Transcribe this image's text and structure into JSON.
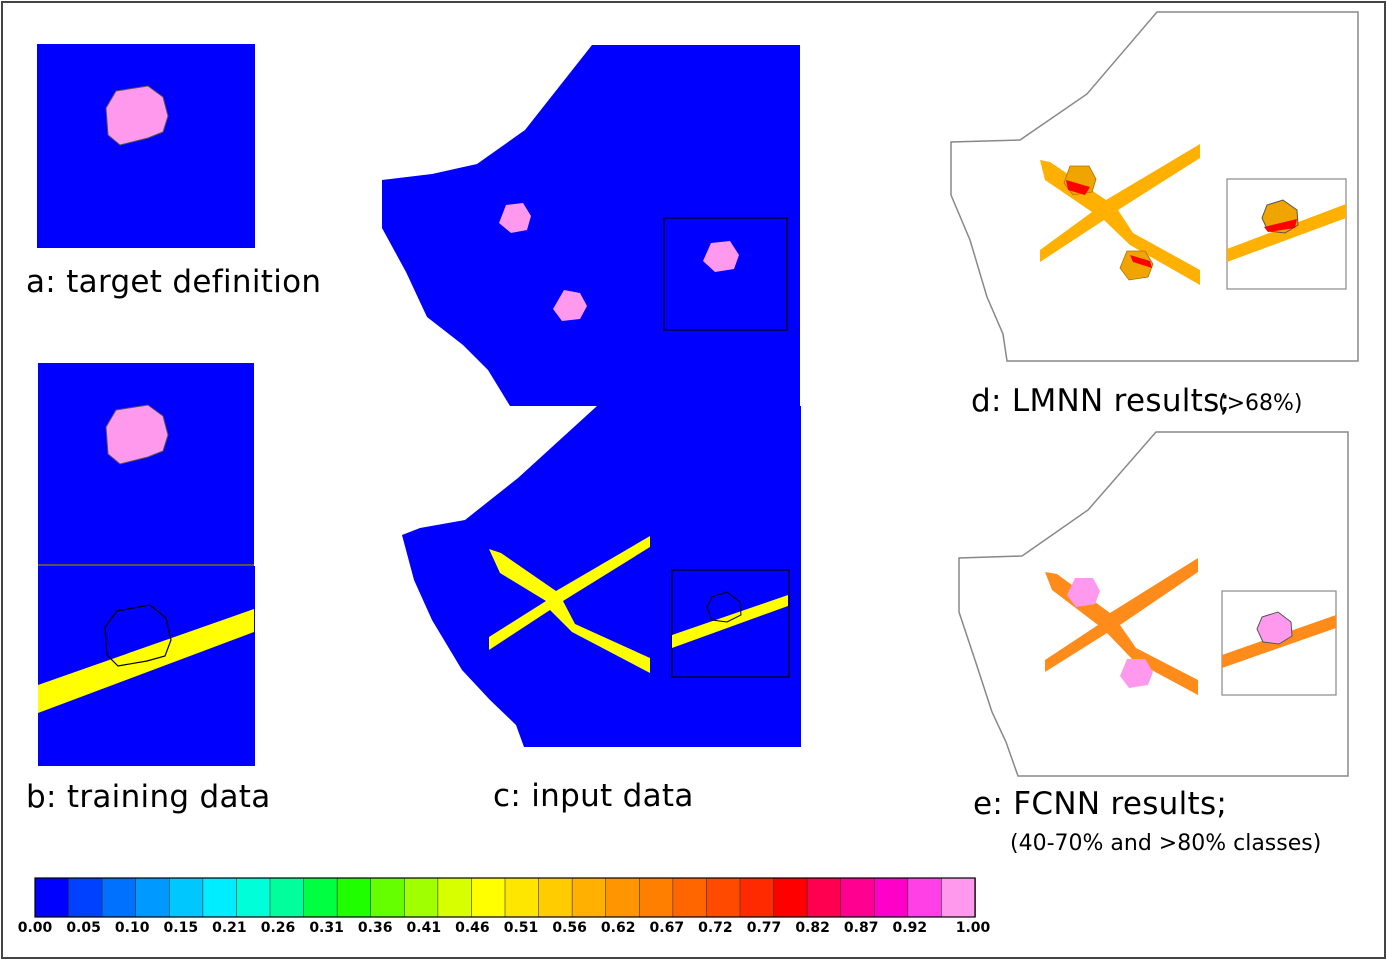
{
  "panels": {
    "a": {
      "label": "a: target definition"
    },
    "b": {
      "label": "b: training data"
    },
    "c": {
      "label": "c: input data"
    },
    "d": {
      "label": "d: LMNN results;",
      "note": "(>68%)"
    },
    "e": {
      "label": "e: FCNN results;",
      "note": "(40-70% and >80% classes)"
    }
  },
  "colors": {
    "background_field": "#0000ff",
    "target": "#ff99ee",
    "input_feature": "#ffff00",
    "lmnn_feature": "#ffb000",
    "lmnn_overlap": "#ff0000",
    "lmnn_blob": "#f0a400",
    "fcnn_feature": "#ff8c1a",
    "fcnn_blob": "#ff99ee"
  },
  "colorbar": {
    "ticks": [
      "0.00",
      "0.05",
      "0.10",
      "0.15",
      "0.21",
      "0.26",
      "0.31",
      "0.36",
      "0.41",
      "0.46",
      "0.51",
      "0.56",
      "0.62",
      "0.67",
      "0.72",
      "0.77",
      "0.82",
      "0.87",
      "0.92",
      "1.00"
    ],
    "colors": [
      "#0000ff",
      "#0040ff",
      "#0070ff",
      "#0099ff",
      "#00c8ff",
      "#00ecff",
      "#00ffd8",
      "#00ff9c",
      "#00ff40",
      "#20ff00",
      "#66ff00",
      "#a0ff00",
      "#d8ff00",
      "#ffff00",
      "#ffe600",
      "#ffcc00",
      "#ffb000",
      "#ff9600",
      "#ff8000",
      "#ff6600",
      "#ff4a00",
      "#ff2a00",
      "#ff0000",
      "#ff0050",
      "#ff0090",
      "#ff00c8",
      "#ff40e6",
      "#ff99ee"
    ]
  }
}
